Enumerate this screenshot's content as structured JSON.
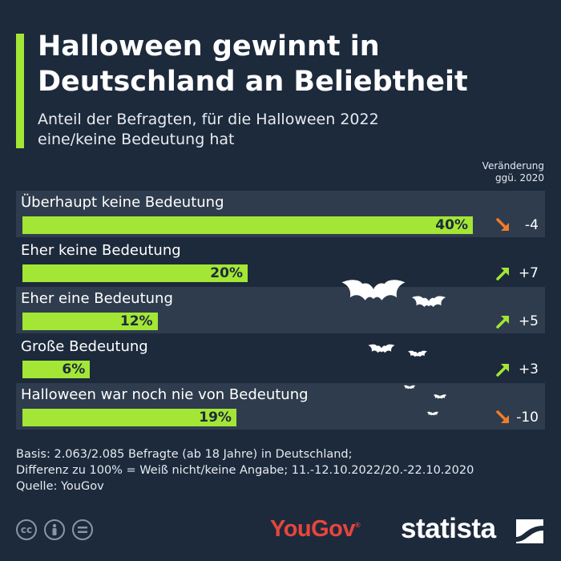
{
  "header": {
    "title_line1": "Halloween gewinnt in",
    "title_line2": "Deutschland an Beliebtheit",
    "subtitle_line1": "Anteil der Befragten, für die Halloween 2022",
    "subtitle_line2": "eine/keine Bedeutung hat",
    "change_header_line1": "Veränderung",
    "change_header_line2": "ggü. 2020"
  },
  "chart_data": {
    "type": "bar",
    "orientation": "horizontal",
    "title": "Halloween gewinnt in Deutschland an Beliebtheit",
    "subtitle": "Anteil der Befragten, für die Halloween 2022 eine/keine Bedeutung hat",
    "unit": "%",
    "xlim": [
      0,
      40
    ],
    "categories": [
      "Überhaupt keine Bedeutung",
      "Eher keine Bedeutung",
      "Eher eine Bedeutung",
      "Große Bedeutung",
      "Halloween war noch nie von Bedeutung"
    ],
    "values": [
      40,
      20,
      12,
      6,
      19
    ],
    "value_labels": [
      "40%",
      "20%",
      "12%",
      "6%",
      "19%"
    ],
    "change_vs_2020": [
      -4,
      7,
      5,
      3,
      -10
    ],
    "change_labels": [
      "-4",
      "+7",
      "+5",
      "+3",
      "-10"
    ],
    "change_column_label": "Veränderung ggü. 2020"
  },
  "colors": {
    "background": "#1d2a3c",
    "shaded_row": "#2f3c4d",
    "bar": "#a3e635",
    "arrow_up": "#a3e635",
    "arrow_down": "#f07c2a",
    "yougov": "#e8453c"
  },
  "footer": {
    "basis": "Basis: 2.063/2.085 Befragte (ab 18 Jahre) in Deutschland;",
    "difference": "Differenz zu 100% = Weiß nicht/keine Angabe; 11.-12.10.2022/20.-22.10.2020",
    "source": "Quelle: YouGov",
    "license_icons": [
      "cc-icon",
      "person-icon",
      "equals-icon"
    ],
    "cc_label": "cc",
    "yougov_logo": "YouGov",
    "yougov_mark": "®",
    "statista_logo": "statista"
  }
}
